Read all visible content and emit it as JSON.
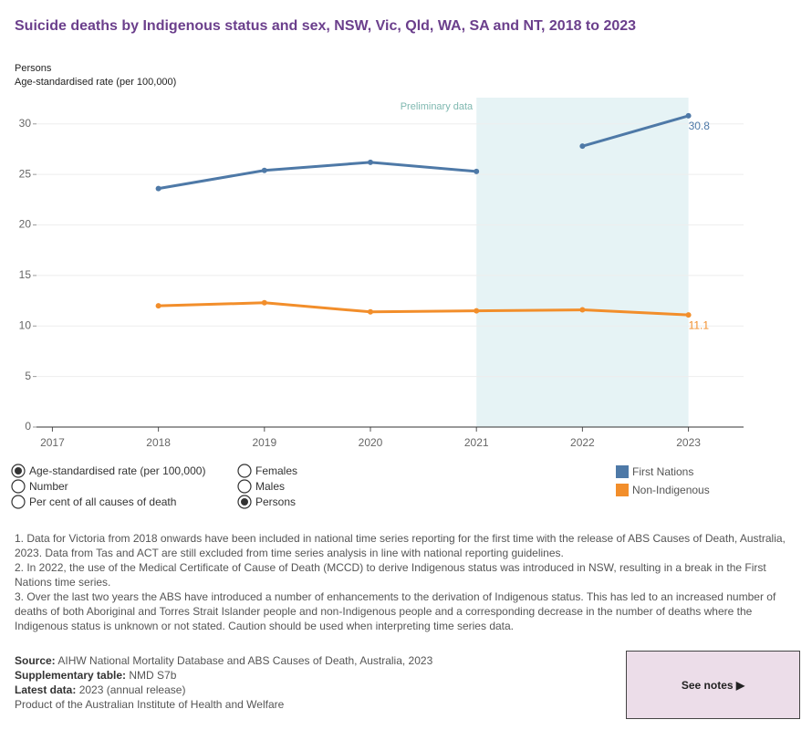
{
  "chart_data": {
    "type": "line",
    "title": "Suicide deaths by Indigenous status and sex, NSW, Vic, Qld, WA, SA and NT, 2018 to 2023",
    "subtitle": "Persons",
    "y_label": "Age-standardised rate (per 100,000)",
    "x": [
      2018,
      2019,
      2020,
      2021,
      2022,
      2023
    ],
    "series": [
      {
        "name": "First Nations",
        "color": "#4e79a7",
        "values": [
          23.6,
          25.4,
          26.2,
          25.3,
          27.8,
          30.8
        ],
        "break_after_x": 2021
      },
      {
        "name": "Non-Indigenous",
        "color": "#f28e2b",
        "values": [
          12.0,
          12.3,
          11.4,
          11.5,
          11.6,
          11.1
        ]
      }
    ],
    "end_labels": true,
    "xlim": [
      2016.85,
      2023.52
    ],
    "xticks": [
      2017,
      2018,
      2019,
      2020,
      2021,
      2022,
      2023
    ],
    "ylim": [
      0,
      32.6
    ],
    "yticks": [
      0,
      5,
      10,
      15,
      20,
      25,
      30
    ],
    "grid": true,
    "shaded_region": {
      "label": "Preliminary data",
      "x": [
        2021,
        2023
      ],
      "color": "#e6f3f5"
    }
  },
  "controls": {
    "measure": {
      "options": [
        "Age-standardised rate (per 100,000)",
        "Number",
        "Per cent of all causes of death"
      ],
      "selected": 0
    },
    "sex": {
      "options": [
        "Females",
        "Males",
        "Persons"
      ],
      "selected": 2
    }
  },
  "notes": [
    "1. Data for Victoria from 2018 onwards have been included in national time series reporting for the first time with the release of ABS Causes of Death, Australia, 2023. Data from Tas and ACT are still excluded from time series analysis in line with national reporting guidelines.",
    "2. In 2022, the use of the Medical Certificate of Cause of Death (MCCD) to derive Indigenous status was introduced in NSW, resulting in a break in the First Nations time series.",
    "3. Over the last two years the ABS have introduced a number of enhancements to the derivation of Indigenous status. This has led to an increased number of deaths of both Aboriginal and Torres Strait Islander people and non-Indigenous people and a corresponding decrease in the number of deaths where the Indigenous status is unknown or not stated. Caution should be used when interpreting time series data."
  ],
  "source": [
    {
      "label": "Source:",
      "text": "AIHW National Mortality Database and ABS Causes of Death, Australia, 2023"
    },
    {
      "label": "Supplementary table:",
      "text": "NMD S7b"
    },
    {
      "label": "Latest data:",
      "text": "2023 (annual release)"
    },
    {
      "text": "Product of the Australian Institute of Health and Welfare"
    }
  ],
  "button": "See notes ▶"
}
